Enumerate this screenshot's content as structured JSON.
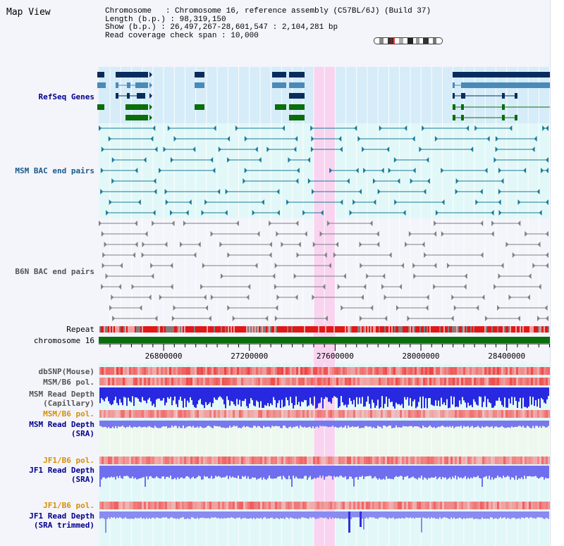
{
  "title": "Map View",
  "info": {
    "line1": "Chromosome   : Chromosome 16, reference assembly (C57BL/6J) (Build 37)",
    "line2": "Length (b.p.) : 98,319,150",
    "line3": "Show (b.p.) : 26,497,267-28,601,547 : 2,104,281 bp",
    "line4": "Read coverage check span : 10,000"
  },
  "tracks": {
    "refseq": "RefSeq Genes",
    "msm_bac": "MSM BAC end pairs",
    "b6n_bac": "B6N BAC end pairs",
    "repeat": "Repeat",
    "chromosome": "chromosome 16",
    "dbsnp": "dbSNP(Mouse)",
    "msm_b6_pol": "MSM/B6 pol.",
    "msm_read_depth_cap_1": "MSM Read Depth",
    "msm_read_depth_cap_2": "(Capillary)",
    "msm_b6_pol_2": "MSM/B6 pol.",
    "msm_read_depth_sra_1": "MSM Read Depth",
    "msm_read_depth_sra_2": "(SRA)",
    "jf1_b6_pol": "JF1/B6 pol.",
    "jf1_read_depth_1": "JF1 Read Depth",
    "jf1_read_depth_2": "(SRA)",
    "jf1_b6_pol_2": "JF1/B6 pol.",
    "jf1_read_depth_trim_1": "JF1 Read Depth",
    "jf1_read_depth_trim_2": "(SRA trimmed)"
  },
  "axis": {
    "start": 26497267,
    "end": 28601547,
    "ticks": [
      26800000,
      27200000,
      27600000,
      28000000,
      28400000
    ],
    "tick_labels": [
      "26800000",
      "27200000",
      "27600000",
      "28000000",
      "28400000"
    ]
  },
  "highlight": {
    "start": 27500000,
    "end": 27600000
  },
  "colors": {
    "refseq_bg": "#d6ecf8",
    "msm_bg": "#e2f8f8",
    "b6n_bg": "#f4f4fb",
    "highlight": "#f8d4f0",
    "refseq_dark": "#082c5c",
    "refseq_mid": "#4a8ab8",
    "refseq_green": "#0a6e0a",
    "msm_bac": "#1a7a98",
    "b6n_bac": "#808080",
    "label_navy": "#00008b",
    "label_orange": "#d89000",
    "chromosome": "#0a6e0a"
  }
}
